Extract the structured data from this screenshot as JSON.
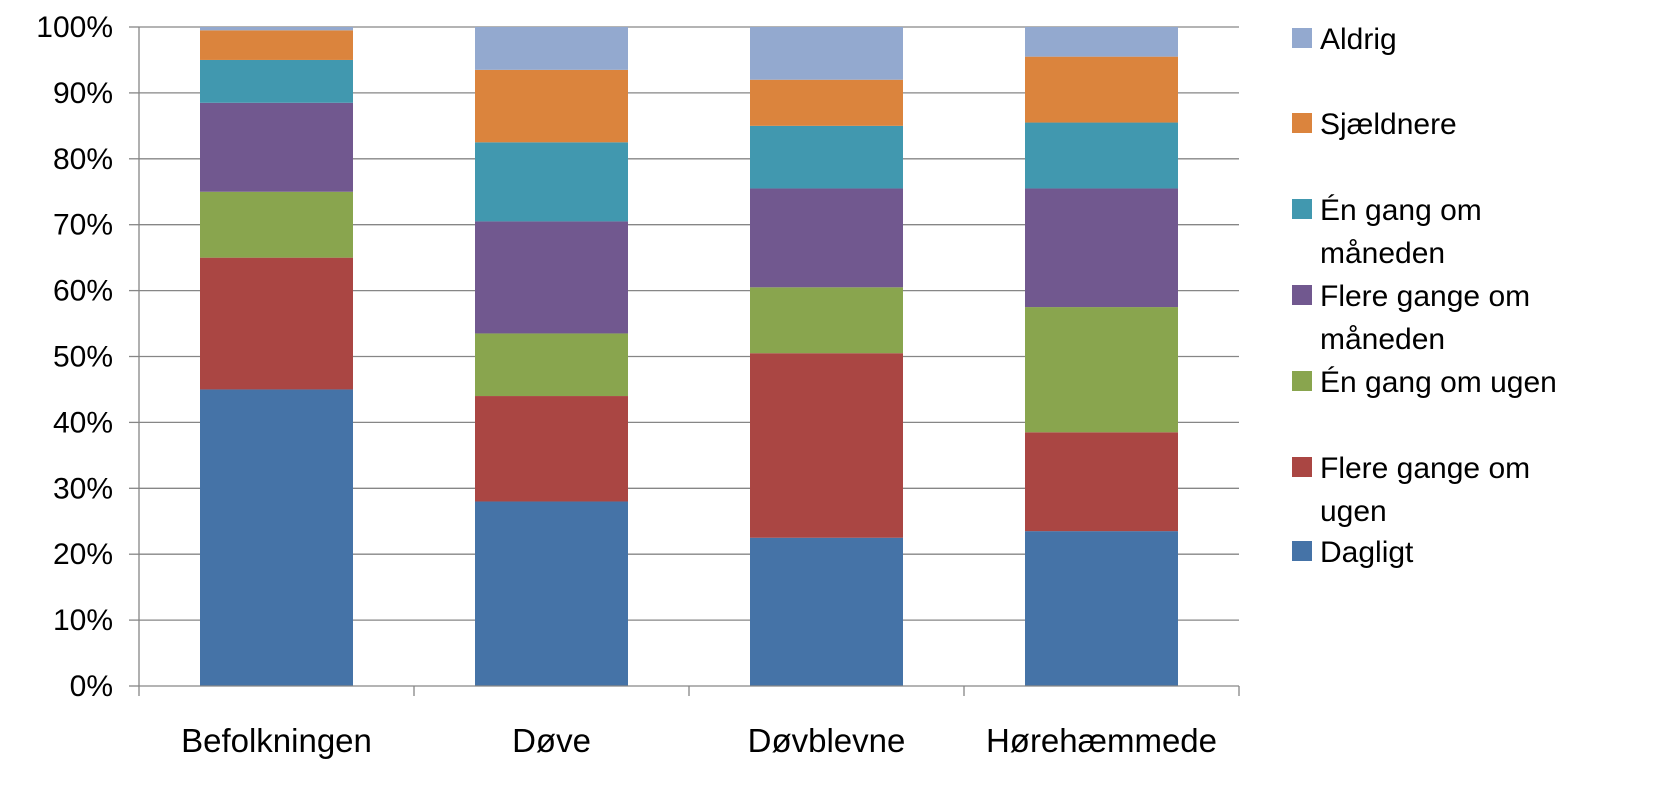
{
  "chart_data": {
    "type": "bar",
    "stacked": true,
    "percent_stacked": true,
    "categories": [
      "Befolkningen",
      "Døve",
      "Døvblevne",
      "Hørehæmmede"
    ],
    "series": [
      {
        "name": "Dagligt",
        "color": "#4573A7",
        "values": [
          45,
          28,
          22.5,
          23.5
        ]
      },
      {
        "name": "Flere gange om ugen",
        "color": "#AA4643",
        "values": [
          20,
          16,
          28,
          15
        ]
      },
      {
        "name": "Én gang om ugen",
        "color": "#89A54E",
        "values": [
          10,
          9.5,
          10,
          19
        ]
      },
      {
        "name": "Flere gange om måneden",
        "color": "#71588F",
        "values": [
          13.5,
          17,
          15,
          18
        ]
      },
      {
        "name": "Én gang om måneden",
        "color": "#4198AF",
        "values": [
          6.5,
          12,
          9.5,
          10
        ]
      },
      {
        "name": "Sjældnere",
        "color": "#DB843D",
        "values": [
          4.5,
          11,
          7,
          10
        ]
      },
      {
        "name": "Aldrig",
        "color": "#93A9CF",
        "values": [
          0.5,
          6.5,
          8,
          4.5
        ]
      }
    ],
    "legend_lines": [
      [
        "Aldrig"
      ],
      [
        "Sjældnere"
      ],
      [
        "Én gang om",
        "måneden"
      ],
      [
        "Flere gange om",
        "måneden"
      ],
      [
        "Én gang om ugen"
      ],
      [
        "Flere gange om",
        "ugen"
      ],
      [
        "Dagligt"
      ]
    ],
    "yticks": [
      "0%",
      "10%",
      "20%",
      "30%",
      "40%",
      "50%",
      "60%",
      "70%",
      "80%",
      "90%",
      "100%"
    ],
    "ylim": [
      0,
      100
    ],
    "grid": true,
    "legend_position": "right",
    "title": "",
    "xlabel": "",
    "ylabel": ""
  }
}
